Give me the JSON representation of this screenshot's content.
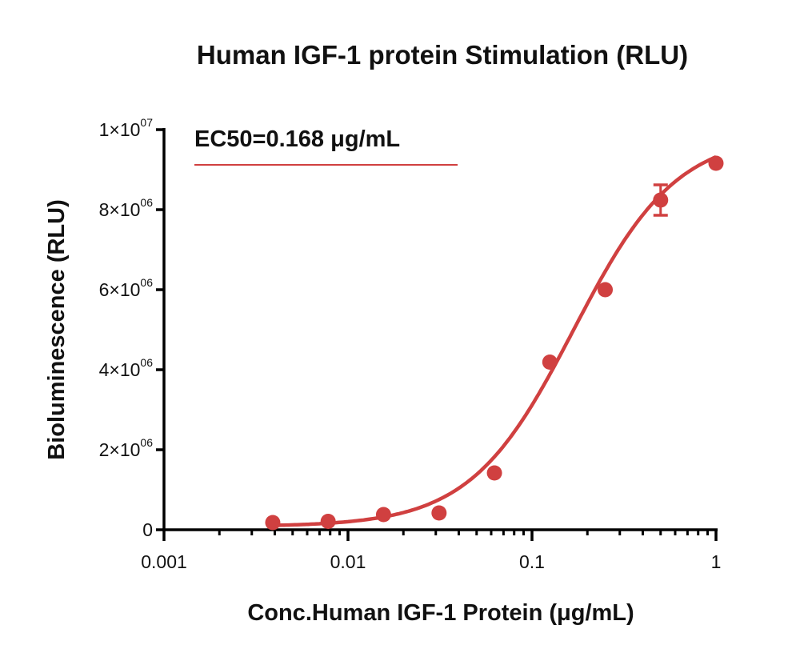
{
  "chart_data": {
    "type": "scatter",
    "title": "Human IGF-1 protein Stimulation (RLU)",
    "xlabel": "Conc.Human IGF-1 Protein (μg/mL)",
    "ylabel": "Bioluminescence (RLU)",
    "xscale": "log",
    "xlim": [
      0.001,
      1
    ],
    "ylim": [
      0,
      10000000
    ],
    "x_ticks": [
      {
        "value": 0.001,
        "label": "0.001"
      },
      {
        "value": 0.01,
        "label": "0.01"
      },
      {
        "value": 0.1,
        "label": "0.1"
      },
      {
        "value": 1,
        "label": "1"
      }
    ],
    "y_ticks": [
      {
        "value": 0,
        "label": "0",
        "sup": ""
      },
      {
        "value": 2000000,
        "label": "2×10",
        "sup": "06"
      },
      {
        "value": 4000000,
        "label": "4×10",
        "sup": "06"
      },
      {
        "value": 6000000,
        "label": "6×10",
        "sup": "06"
      },
      {
        "value": 8000000,
        "label": "8×10",
        "sup": "06"
      },
      {
        "value": 10000000,
        "label": "1×10",
        "sup": "07"
      }
    ],
    "annotation": "EC50=0.168 μg/mL",
    "color": "#d04040",
    "series": [
      {
        "name": "Human IGF-1",
        "x": [
          0.0039,
          0.0078,
          0.0156,
          0.03125,
          0.0625,
          0.125,
          0.25,
          0.5,
          1
        ],
        "y": [
          180000,
          210000,
          380000,
          420000,
          1420000,
          4190000,
          6000000,
          8240000,
          9160000
        ],
        "error": [
          0,
          0,
          0,
          0,
          0,
          0,
          0,
          380000,
          0
        ]
      }
    ],
    "fit": {
      "model": "4PL",
      "bottom": 80000,
      "top": 9900000,
      "ec50": 0.168,
      "hill": 1.55
    }
  }
}
